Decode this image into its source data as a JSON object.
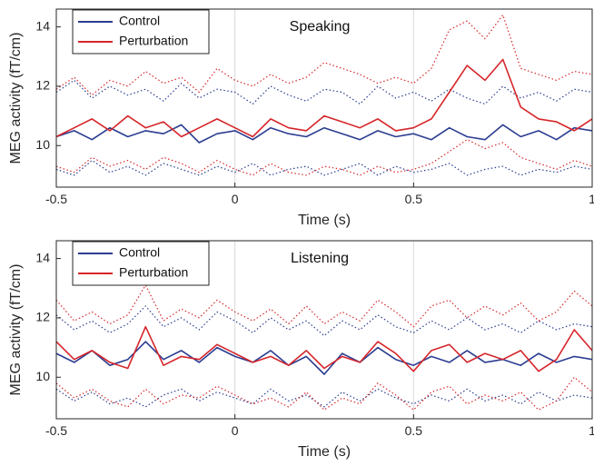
{
  "chart_data": [
    {
      "type": "line",
      "title": "Speaking",
      "xlabel": "Time (s)",
      "ylabel": "MEG activity (fT/cm)",
      "xlim": [
        -0.5,
        1.0
      ],
      "ylim": [
        8.6,
        14.6
      ],
      "xticks": [
        -0.5,
        0,
        0.5,
        1
      ],
      "xtick_labels": [
        "-0.5",
        "0",
        "0.5",
        "1"
      ],
      "yticks": [
        10,
        12,
        14
      ],
      "ytick_labels": [
        "10",
        "12",
        "14"
      ],
      "vertical_gridlines_at": [
        0,
        0.5
      ],
      "legend": {
        "placement": "top-left",
        "entries": [
          "Control",
          "Perturbation"
        ]
      },
      "series": [
        {
          "name": "Control",
          "color": "#2b3d91",
          "x": [
            -0.5,
            -0.45,
            -0.4,
            -0.35,
            -0.3,
            -0.25,
            -0.2,
            -0.15,
            -0.1,
            -0.05,
            0.0,
            0.05,
            0.1,
            0.15,
            0.2,
            0.25,
            0.3,
            0.35,
            0.4,
            0.45,
            0.5,
            0.55,
            0.6,
            0.65,
            0.7,
            0.75,
            0.8,
            0.85,
            0.9,
            0.95,
            1.0
          ],
          "y": [
            10.3,
            10.5,
            10.2,
            10.6,
            10.3,
            10.5,
            10.4,
            10.7,
            10.1,
            10.4,
            10.5,
            10.2,
            10.6,
            10.4,
            10.3,
            10.6,
            10.4,
            10.2,
            10.5,
            10.3,
            10.4,
            10.2,
            10.6,
            10.3,
            10.2,
            10.7,
            10.3,
            10.5,
            10.2,
            10.6,
            10.5
          ]
        },
        {
          "name": "Perturbation",
          "color": "#d6262b",
          "x": [
            -0.5,
            -0.45,
            -0.4,
            -0.35,
            -0.3,
            -0.25,
            -0.2,
            -0.15,
            -0.1,
            -0.05,
            0.0,
            0.05,
            0.1,
            0.15,
            0.2,
            0.25,
            0.3,
            0.35,
            0.4,
            0.45,
            0.5,
            0.55,
            0.6,
            0.65,
            0.7,
            0.75,
            0.8,
            0.85,
            0.9,
            0.95,
            1.0
          ],
          "y": [
            10.3,
            10.6,
            10.9,
            10.5,
            11.0,
            10.6,
            10.8,
            10.3,
            10.6,
            10.9,
            10.6,
            10.3,
            10.9,
            10.6,
            10.5,
            11.0,
            10.8,
            10.6,
            10.9,
            10.5,
            10.6,
            10.9,
            11.8,
            12.7,
            12.2,
            12.9,
            11.3,
            10.9,
            10.8,
            10.5,
            10.9
          ]
        },
        {
          "name": "",
          "color": "#2b3d91",
          "style": "dotted",
          "x": [
            -0.5,
            -0.45,
            -0.4,
            -0.35,
            -0.3,
            -0.25,
            -0.2,
            -0.15,
            -0.1,
            -0.05,
            0.0,
            0.05,
            0.1,
            0.15,
            0.2,
            0.25,
            0.3,
            0.35,
            0.4,
            0.45,
            0.5,
            0.55,
            0.6,
            0.65,
            0.7,
            0.75,
            0.8,
            0.85,
            0.9,
            0.95,
            1.0
          ],
          "y": [
            11.8,
            12.2,
            11.6,
            12.0,
            11.7,
            11.9,
            11.5,
            12.1,
            11.6,
            11.9,
            11.8,
            11.4,
            12.0,
            11.7,
            11.5,
            11.9,
            11.8,
            11.4,
            12.0,
            11.6,
            11.8,
            11.5,
            11.9,
            11.6,
            11.4,
            12.0,
            11.6,
            11.8,
            11.5,
            11.9,
            11.8
          ]
        },
        {
          "name": "",
          "color": "#2b3d91",
          "style": "dotted",
          "x": [
            -0.5,
            -0.45,
            -0.4,
            -0.35,
            -0.3,
            -0.25,
            -0.2,
            -0.15,
            -0.1,
            -0.05,
            0.0,
            0.05,
            0.1,
            0.15,
            0.2,
            0.25,
            0.3,
            0.35,
            0.4,
            0.45,
            0.5,
            0.55,
            0.6,
            0.65,
            0.7,
            0.75,
            0.8,
            0.85,
            0.9,
            0.95,
            1.0
          ],
          "y": [
            9.2,
            9.0,
            9.5,
            9.1,
            9.3,
            9.0,
            9.4,
            9.2,
            9.0,
            9.3,
            9.1,
            9.4,
            9.0,
            9.2,
            9.3,
            9.0,
            9.2,
            9.4,
            9.0,
            9.3,
            9.1,
            9.2,
            9.4,
            9.0,
            9.2,
            9.3,
            9.0,
            9.2,
            9.1,
            9.3,
            9.2
          ]
        },
        {
          "name": "",
          "color": "#d6262b",
          "style": "dotted",
          "x": [
            -0.5,
            -0.45,
            -0.4,
            -0.35,
            -0.3,
            -0.25,
            -0.2,
            -0.15,
            -0.1,
            -0.05,
            0.0,
            0.05,
            0.1,
            0.15,
            0.2,
            0.25,
            0.3,
            0.35,
            0.4,
            0.45,
            0.5,
            0.55,
            0.6,
            0.65,
            0.7,
            0.75,
            0.8,
            0.85,
            0.9,
            0.95,
            1.0
          ],
          "y": [
            11.9,
            12.3,
            11.7,
            12.2,
            12.0,
            12.5,
            12.1,
            12.3,
            11.8,
            12.6,
            12.2,
            12.0,
            12.4,
            12.1,
            12.3,
            12.8,
            12.6,
            12.4,
            12.1,
            12.3,
            12.1,
            12.6,
            13.9,
            14.2,
            13.6,
            14.4,
            12.6,
            12.4,
            12.2,
            12.5,
            12.4
          ]
        },
        {
          "name": "",
          "color": "#d6262b",
          "style": "dotted",
          "x": [
            -0.5,
            -0.45,
            -0.4,
            -0.35,
            -0.3,
            -0.25,
            -0.2,
            -0.15,
            -0.1,
            -0.05,
            0.0,
            0.05,
            0.1,
            0.15,
            0.2,
            0.25,
            0.3,
            0.35,
            0.4,
            0.45,
            0.5,
            0.55,
            0.6,
            0.65,
            0.7,
            0.75,
            0.8,
            0.85,
            0.9,
            0.95,
            1.0
          ],
          "y": [
            9.3,
            9.1,
            9.6,
            9.3,
            9.5,
            9.2,
            9.6,
            9.4,
            9.1,
            9.5,
            9.2,
            9.0,
            9.4,
            9.1,
            9.0,
            9.3,
            9.2,
            9.0,
            9.3,
            9.1,
            9.2,
            9.4,
            9.8,
            10.2,
            9.9,
            10.1,
            9.6,
            9.4,
            9.2,
            9.5,
            9.3
          ]
        }
      ]
    },
    {
      "type": "line",
      "title": "Listening",
      "xlabel": "Time (s)",
      "ylabel": "MEG activity (fT/cm)",
      "xlim": [
        -0.5,
        1.0
      ],
      "ylim": [
        8.6,
        14.6
      ],
      "xticks": [
        -0.5,
        0,
        0.5,
        1
      ],
      "xtick_labels": [
        "-0.5",
        "0",
        "0.5",
        "1"
      ],
      "yticks": [
        10,
        12,
        14
      ],
      "ytick_labels": [
        "10",
        "12",
        "14"
      ],
      "vertical_gridlines_at": [
        0,
        0.5
      ],
      "legend": {
        "placement": "top-left",
        "entries": [
          "Control",
          "Perturbation"
        ]
      },
      "series": [
        {
          "name": "Control",
          "color": "#2b3d91",
          "x": [
            -0.5,
            -0.45,
            -0.4,
            -0.35,
            -0.3,
            -0.25,
            -0.2,
            -0.15,
            -0.1,
            -0.05,
            0.0,
            0.05,
            0.1,
            0.15,
            0.2,
            0.25,
            0.3,
            0.35,
            0.4,
            0.45,
            0.5,
            0.55,
            0.6,
            0.65,
            0.7,
            0.75,
            0.8,
            0.85,
            0.9,
            0.95,
            1.0
          ],
          "y": [
            10.8,
            10.5,
            10.9,
            10.4,
            10.6,
            11.2,
            10.6,
            10.9,
            10.5,
            11.0,
            10.7,
            10.5,
            10.9,
            10.4,
            10.7,
            10.1,
            10.8,
            10.5,
            11.0,
            10.6,
            10.4,
            10.7,
            10.5,
            10.9,
            10.5,
            10.6,
            10.4,
            10.8,
            10.5,
            10.7,
            10.6
          ]
        },
        {
          "name": "Perturbation",
          "color": "#d6262b",
          "x": [
            -0.5,
            -0.45,
            -0.4,
            -0.35,
            -0.3,
            -0.25,
            -0.2,
            -0.15,
            -0.1,
            -0.05,
            0.0,
            0.05,
            0.1,
            0.15,
            0.2,
            0.25,
            0.3,
            0.35,
            0.4,
            0.45,
            0.5,
            0.55,
            0.6,
            0.65,
            0.7,
            0.75,
            0.8,
            0.85,
            0.9,
            0.95,
            1.0
          ],
          "y": [
            11.2,
            10.6,
            10.9,
            10.5,
            10.3,
            11.7,
            10.4,
            10.7,
            10.6,
            11.1,
            10.8,
            10.5,
            10.7,
            10.4,
            10.9,
            10.3,
            10.7,
            10.5,
            11.2,
            10.8,
            10.2,
            10.9,
            11.1,
            10.5,
            10.8,
            10.6,
            10.9,
            10.2,
            10.6,
            11.6,
            10.9
          ]
        },
        {
          "name": "",
          "color": "#2b3d91",
          "style": "dotted",
          "x": [
            -0.5,
            -0.45,
            -0.4,
            -0.35,
            -0.3,
            -0.25,
            -0.2,
            -0.15,
            -0.1,
            -0.05,
            0.0,
            0.05,
            0.1,
            0.15,
            0.2,
            0.25,
            0.3,
            0.35,
            0.4,
            0.45,
            0.5,
            0.55,
            0.6,
            0.65,
            0.7,
            0.75,
            0.8,
            0.85,
            0.9,
            0.95,
            1.0
          ],
          "y": [
            12.1,
            11.6,
            11.9,
            11.5,
            11.8,
            12.4,
            11.7,
            12.0,
            11.6,
            12.2,
            11.9,
            11.5,
            12.0,
            11.6,
            11.9,
            11.4,
            11.9,
            11.6,
            12.1,
            11.7,
            11.5,
            11.9,
            11.6,
            12.0,
            11.6,
            11.8,
            11.5,
            11.9,
            11.6,
            11.8,
            11.7
          ]
        },
        {
          "name": "",
          "color": "#2b3d91",
          "style": "dotted",
          "x": [
            -0.5,
            -0.45,
            -0.4,
            -0.35,
            -0.3,
            -0.25,
            -0.2,
            -0.15,
            -0.1,
            -0.05,
            0.0,
            0.05,
            0.1,
            0.15,
            0.2,
            0.25,
            0.3,
            0.35,
            0.4,
            0.45,
            0.5,
            0.55,
            0.6,
            0.65,
            0.7,
            0.75,
            0.8,
            0.85,
            0.9,
            0.95,
            1.0
          ],
          "y": [
            9.6,
            9.2,
            9.5,
            9.1,
            9.3,
            9.0,
            9.4,
            9.6,
            9.2,
            9.5,
            9.3,
            9.1,
            9.6,
            9.2,
            9.4,
            9.0,
            9.5,
            9.2,
            9.6,
            9.3,
            9.1,
            9.4,
            9.2,
            9.6,
            9.2,
            9.4,
            9.1,
            9.5,
            9.2,
            9.4,
            9.3
          ]
        },
        {
          "name": "",
          "color": "#d6262b",
          "style": "dotted",
          "x": [
            -0.5,
            -0.45,
            -0.4,
            -0.35,
            -0.3,
            -0.25,
            -0.2,
            -0.15,
            -0.1,
            -0.05,
            0.0,
            0.05,
            0.1,
            0.15,
            0.2,
            0.25,
            0.3,
            0.35,
            0.4,
            0.45,
            0.5,
            0.55,
            0.6,
            0.65,
            0.7,
            0.75,
            0.8,
            0.85,
            0.9,
            0.95,
            1.0
          ],
          "y": [
            12.6,
            11.9,
            12.2,
            11.8,
            12.1,
            13.1,
            11.9,
            12.3,
            12.0,
            12.6,
            12.2,
            11.9,
            12.3,
            11.8,
            12.4,
            11.8,
            12.2,
            11.9,
            12.6,
            12.2,
            11.7,
            12.4,
            12.6,
            12.0,
            12.4,
            12.1,
            12.5,
            11.9,
            12.2,
            12.9,
            12.4
          ]
        },
        {
          "name": "",
          "color": "#d6262b",
          "style": "dotted",
          "x": [
            -0.5,
            -0.45,
            -0.4,
            -0.35,
            -0.3,
            -0.25,
            -0.2,
            -0.15,
            -0.1,
            -0.05,
            0.0,
            0.05,
            0.1,
            0.15,
            0.2,
            0.25,
            0.3,
            0.35,
            0.4,
            0.45,
            0.5,
            0.55,
            0.6,
            0.65,
            0.7,
            0.75,
            0.8,
            0.85,
            0.9,
            0.95,
            1.0
          ],
          "y": [
            9.8,
            9.3,
            9.6,
            9.2,
            9.0,
            9.6,
            9.1,
            9.4,
            9.3,
            9.7,
            9.4,
            9.1,
            9.3,
            9.0,
            9.5,
            8.9,
            9.3,
            9.1,
            9.8,
            9.4,
            8.9,
            9.5,
            9.7,
            9.1,
            9.4,
            9.2,
            9.5,
            8.9,
            9.2,
            10.0,
            9.5
          ]
        }
      ]
    }
  ]
}
